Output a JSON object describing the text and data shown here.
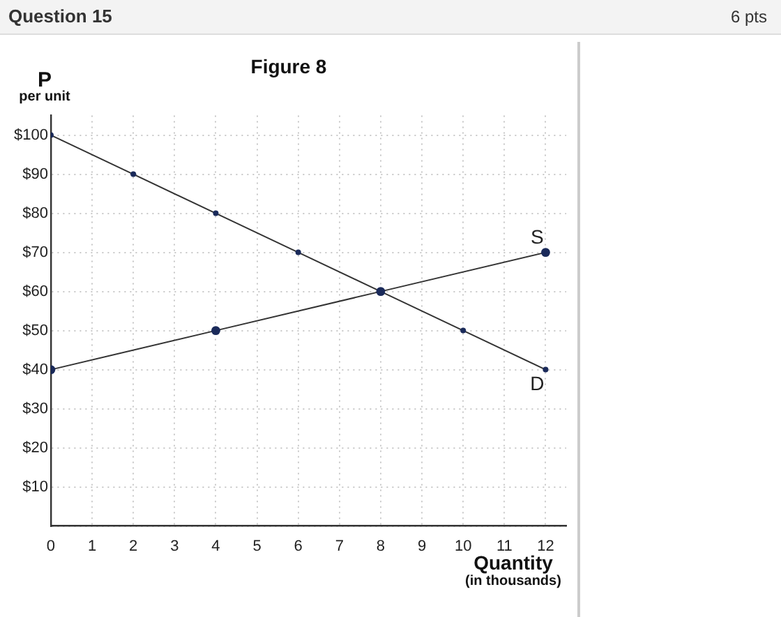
{
  "chart_data": {
    "type": "line",
    "title": "Figure 8",
    "xlabel": "Quantity\n(in thousands)",
    "ylabel": "P\nper unit",
    "annotations": [
      "Question 15",
      "6 pts"
    ],
    "xlim": [
      0,
      12.5
    ],
    "ylim": [
      0,
      105
    ],
    "xticks": [
      0,
      1,
      2,
      3,
      4,
      5,
      6,
      7,
      8,
      9,
      10,
      11,
      12
    ],
    "yticks": [
      {
        "value": 0,
        "label": null
      },
      {
        "value": 10,
        "label": "$10"
      },
      {
        "value": 20,
        "label": "$20"
      },
      {
        "value": 30,
        "label": "$30"
      },
      {
        "value": 40,
        "label": "$40"
      },
      {
        "value": 50,
        "label": "$50"
      },
      {
        "value": 60,
        "label": "$60"
      },
      {
        "value": 70,
        "label": "$70"
      },
      {
        "value": 80,
        "label": "$80"
      },
      {
        "value": 90,
        "label": "$90"
      },
      {
        "value": 100,
        "label": "$100"
      }
    ],
    "grid": true,
    "legend": false,
    "marker": "circle",
    "line_style": "solid",
    "series": [
      {
        "name": "S",
        "color": "#333333",
        "x": [
          0,
          4,
          8,
          12
        ],
        "values": [
          40,
          50,
          60,
          70
        ]
      },
      {
        "name": "D",
        "color": "#333333",
        "x": [
          0,
          2,
          4,
          6,
          8,
          10,
          12
        ],
        "values": [
          100,
          90,
          80,
          70,
          60,
          50,
          40
        ]
      }
    ]
  }
}
